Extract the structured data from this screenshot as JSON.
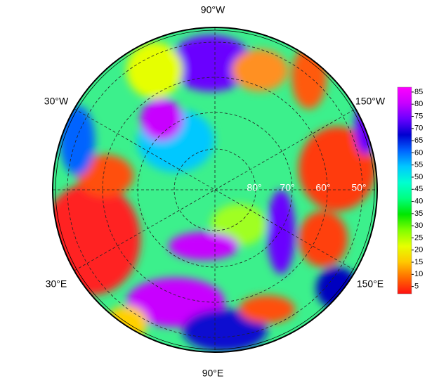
{
  "map": {
    "longitude_labels": [
      "90°W",
      "30°W",
      "150°W",
      "30°E",
      "150°E",
      "90°E"
    ],
    "latitude_labels": [
      "80°",
      "70°",
      "60°",
      "50°"
    ]
  },
  "colorbar": {
    "ylim": [
      2,
      87
    ],
    "yticks": [
      5,
      10,
      15,
      20,
      25,
      30,
      35,
      40,
      45,
      50,
      55,
      60,
      65,
      70,
      75,
      80,
      85
    ],
    "colors": [
      "#ff1010",
      "#ff6a00",
      "#ffc800",
      "#e6ff00",
      "#80ff00",
      "#00e600",
      "#00ff80",
      "#00ffd0",
      "#00c8ff",
      "#0064ff",
      "#0000d0",
      "#6a00ff",
      "#c800ff",
      "#ff00ff"
    ]
  }
}
